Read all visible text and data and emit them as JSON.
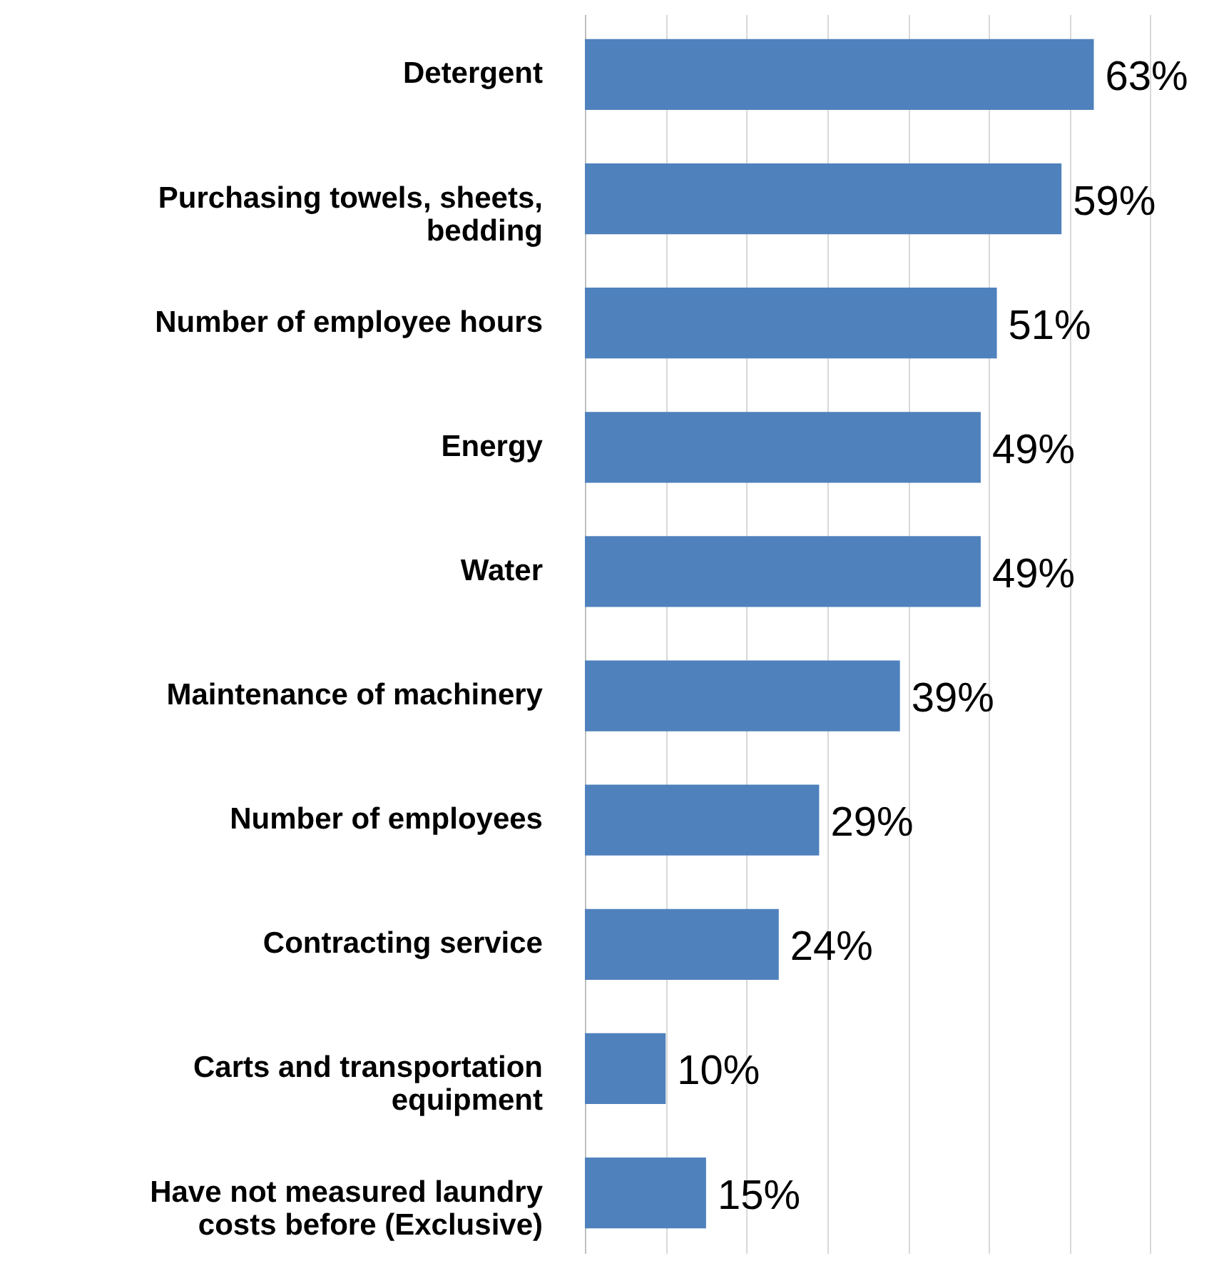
{
  "chart_data": {
    "type": "bar",
    "orientation": "horizontal",
    "categories": [
      "Detergent",
      "Purchasing towels, sheets, bedding",
      "Number of employee hours",
      "Energy",
      "Water",
      "Maintenance of machinery",
      "Number of employees",
      "Contracting service",
      "Carts and transportation equipment",
      "Have not measured laundry costs before (Exclusive)"
    ],
    "values": [
      63,
      59,
      51,
      49,
      49,
      39,
      29,
      24,
      10,
      15
    ],
    "value_labels": [
      "63%",
      "59%",
      "51%",
      "49%",
      "49%",
      "39%",
      "29%",
      "24%",
      "10%",
      "15%"
    ],
    "color": "#4f81bd",
    "xlim": [
      0,
      80
    ],
    "xticks": [
      {
        "value": 0,
        "label": null
      },
      {
        "value": 10,
        "label": null
      },
      {
        "value": 20,
        "label": null
      },
      {
        "value": 30,
        "label": null
      },
      {
        "value": 40,
        "label": null
      },
      {
        "value": 50,
        "label": null
      },
      {
        "value": 60,
        "label": null
      },
      {
        "value": 70,
        "label": null
      },
      {
        "value": 80,
        "label": null
      }
    ],
    "grid": "x",
    "tick_labels": "y"
  }
}
